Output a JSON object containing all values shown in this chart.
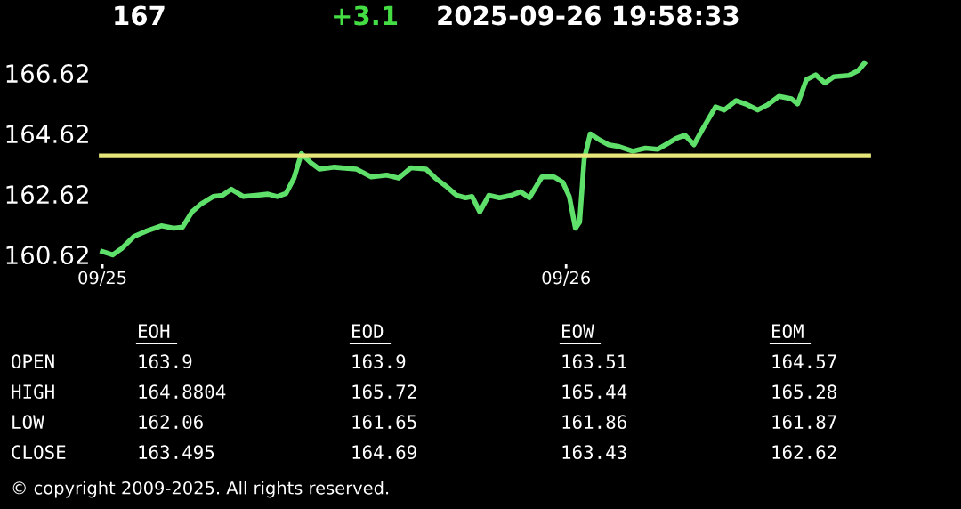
{
  "chart_data": [
    {
      "type": "line",
      "title": "167",
      "subtitle": "+3.1",
      "annotations": [
        "2025-09-26 19:58:33",
        "© copyright 2009-2025. All rights reserved."
      ],
      "xlim": [
        "2025-09-24T23:46",
        "2025-09-26T15:50"
      ],
      "xticks": [
        {
          "value": "2025-09-25",
          "label": "09/25"
        },
        {
          "value": "2025-09-26",
          "label": "09/26"
        }
      ],
      "ylim": [
        160.33,
        167.27
      ],
      "yticks": [
        160.62,
        162.62,
        164.62,
        166.62
      ],
      "grid": false,
      "legend": false,
      "ref_lines": [
        {
          "axis": "y",
          "value": 163.9,
          "color": "#e6e67a"
        }
      ],
      "series": [
        {
          "color": "#5ee06a",
          "x": [
            "2025-09-25T00:00",
            "2025-09-25T00:32",
            "2025-09-25T01:00",
            "2025-09-25T01:38",
            "2025-09-25T02:15",
            "2025-09-25T03:03",
            "2025-09-25T03:42",
            "2025-09-25T04:09",
            "2025-09-25T04:38",
            "2025-09-25T05:07",
            "2025-09-25T05:44",
            "2025-09-25T06:13",
            "2025-09-25T06:40",
            "2025-09-25T07:18",
            "2025-09-25T07:57",
            "2025-09-25T08:34",
            "2025-09-25T09:03",
            "2025-09-25T09:30",
            "2025-09-25T09:55",
            "2025-09-25T10:18",
            "2025-09-25T10:47",
            "2025-09-25T11:14",
            "2025-09-25T12:01",
            "2025-09-25T13:08",
            "2025-09-25T13:55",
            "2025-09-25T14:43",
            "2025-09-25T15:20",
            "2025-09-25T15:58",
            "2025-09-25T16:45",
            "2025-09-25T17:14",
            "2025-09-25T17:51",
            "2025-09-25T18:20",
            "2025-09-25T18:48",
            "2025-09-25T19:08",
            "2025-09-25T19:32",
            "2025-09-25T20:00",
            "2025-09-25T20:33",
            "2025-09-25T21:10",
            "2025-09-25T21:39",
            "2025-09-25T22:06",
            "2025-09-25T22:45",
            "2025-09-25T23:23",
            "2025-09-25T23:50",
            "2025-09-26T00:10",
            "2025-09-26T00:29",
            "2025-09-26T00:42",
            "2025-09-26T00:56",
            "2025-09-26T01:15",
            "2025-09-26T01:44",
            "2025-09-26T02:12",
            "2025-09-26T02:41",
            "2025-09-26T03:27",
            "2025-09-26T04:06",
            "2025-09-26T04:44",
            "2025-09-26T05:12",
            "2025-09-26T05:40",
            "2025-09-26T06:09",
            "2025-09-26T06:37",
            "2025-09-26T07:05",
            "2025-09-26T07:44",
            "2025-09-26T08:11",
            "2025-09-26T08:48",
            "2025-09-26T09:17",
            "2025-09-26T09:55",
            "2025-09-26T10:24",
            "2025-09-26T11:01",
            "2025-09-26T11:40",
            "2025-09-26T11:59",
            "2025-09-26T12:26",
            "2025-09-26T12:55",
            "2025-09-26T13:24",
            "2025-09-26T13:51",
            "2025-09-26T14:38",
            "2025-09-26T15:07",
            "2025-09-26T15:26"
          ],
          "values": [
            160.72,
            160.61,
            160.82,
            161.22,
            161.39,
            161.57,
            161.49,
            161.53,
            162.03,
            162.3,
            162.54,
            162.58,
            162.78,
            162.54,
            162.58,
            162.62,
            162.54,
            162.64,
            163.15,
            163.96,
            163.66,
            163.45,
            163.51,
            163.45,
            163.19,
            163.25,
            163.15,
            163.49,
            163.45,
            163.15,
            162.85,
            162.58,
            162.5,
            162.54,
            162.03,
            162.58,
            162.5,
            162.58,
            162.7,
            162.5,
            163.19,
            163.19,
            163.01,
            162.54,
            161.49,
            161.69,
            163.76,
            164.61,
            164.41,
            164.25,
            164.2,
            164.04,
            164.14,
            164.1,
            164.27,
            164.45,
            164.57,
            164.25,
            164.79,
            165.5,
            165.4,
            165.71,
            165.6,
            165.4,
            165.56,
            165.85,
            165.77,
            165.6,
            166.4,
            166.56,
            166.29,
            166.5,
            166.54,
            166.7,
            166.94
          ]
        }
      ]
    },
    {
      "type": "other",
      "annotations": [
        "EOH",
        "EOD",
        "EOW",
        "EOM",
        "OPEN",
        "163.9",
        "163.9",
        "163.51",
        "164.57",
        "HIGH",
        "164.8804",
        "165.72",
        "165.44",
        "165.28",
        "LOW",
        "162.06",
        "161.65",
        "161.86",
        "161.87",
        "CLOSE",
        "163.495",
        "164.69",
        "163.43",
        "162.62"
      ]
    }
  ]
}
